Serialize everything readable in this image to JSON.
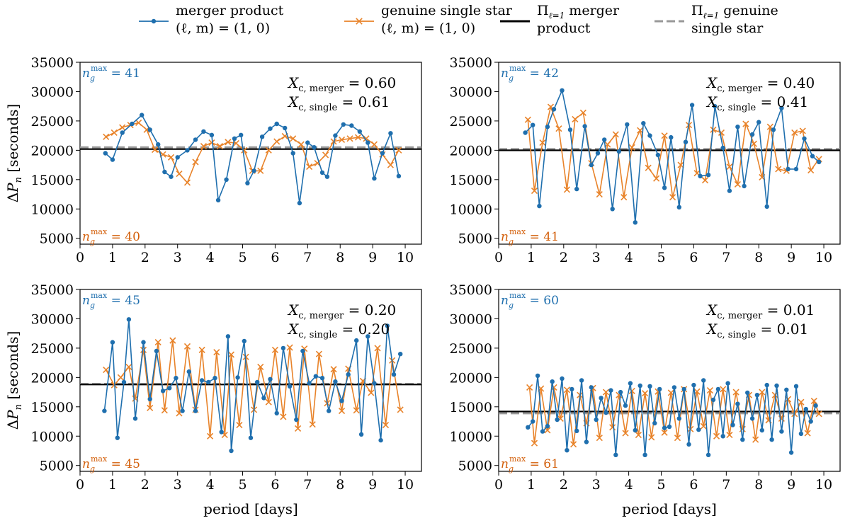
{
  "legend": {
    "entries": [
      {
        "line1": "merger product",
        "line2": "(ℓ, m) = (1, 0)",
        "color": "#1f6fae",
        "marker": "circle"
      },
      {
        "line1": "genuine single star",
        "line2": "(ℓ, m) = (1, 0)",
        "color": "#e8832a",
        "marker": "x"
      },
      {
        "line1_symbol": "Π",
        "line1_sub": "ℓ=1",
        "line1_rest": " merger",
        "line2": "product",
        "color": "#000000",
        "marker": "solid-line"
      },
      {
        "line1_symbol": "Π",
        "line1_sub": "ℓ=1",
        "line1_rest": " genuine",
        "line2": "single star",
        "color": "#999999",
        "marker": "dashed-line"
      }
    ]
  },
  "colors": {
    "merger": "#1f6fae",
    "single": "#e8832a",
    "merger_text": "#1f6fae",
    "single_text": "#d35f0a",
    "pi_merger": "#000000",
    "pi_single": "#999999"
  },
  "chart_data": [
    {
      "type": "line",
      "panel": "top-left",
      "xlabel": "",
      "ylabel": "ΔP_n [seconds]",
      "xlim": [
        0,
        10.5
      ],
      "ylim": [
        4000,
        35000
      ],
      "xticks": [
        0,
        1,
        2,
        3,
        4,
        5,
        6,
        7,
        8,
        9,
        10
      ],
      "yticks": [
        5000,
        10000,
        15000,
        20000,
        25000,
        30000,
        35000
      ],
      "annot_merger": {
        "label": "X",
        "sub": "c, merger",
        "value": "= 0.60"
      },
      "annot_single": {
        "label": "X",
        "sub": "c, single",
        "value": "= 0.61"
      },
      "ng_merger": {
        "label": "n",
        "sub": "g",
        "sup": "max",
        "value": "= 41"
      },
      "ng_single": {
        "label": "n",
        "sub": "g",
        "sup": "max",
        "value": "= 40"
      },
      "pi_merger": 20200,
      "pi_single": 20500,
      "series": [
        {
          "name": "merger product",
          "x": [
            0.78,
            1.0,
            1.3,
            1.6,
            1.9,
            2.15,
            2.4,
            2.6,
            2.8,
            3.0,
            3.3,
            3.55,
            3.8,
            4.05,
            4.25,
            4.5,
            4.75,
            4.95,
            5.15,
            5.35,
            5.6,
            5.85,
            6.05,
            6.3,
            6.55,
            6.75,
            7.0,
            7.2,
            7.45,
            7.6,
            7.85,
            8.1,
            8.35,
            8.6,
            8.85,
            9.05,
            9.3,
            9.55,
            9.8
          ],
          "y": [
            19500,
            18400,
            23000,
            24500,
            26000,
            23500,
            21000,
            16300,
            15500,
            18800,
            20000,
            21800,
            23200,
            22600,
            11500,
            15000,
            22000,
            22600,
            14400,
            16500,
            22300,
            23700,
            24500,
            23800,
            19500,
            11000,
            21300,
            20500,
            16200,
            15500,
            22500,
            24400,
            24200,
            23200,
            21300,
            15200,
            19500,
            22900,
            15600
          ]
        },
        {
          "name": "genuine single star",
          "x": [
            0.8,
            1.05,
            1.3,
            1.55,
            1.8,
            2.05,
            2.3,
            2.55,
            2.8,
            3.05,
            3.3,
            3.55,
            3.8,
            4.05,
            4.3,
            4.55,
            4.8,
            5.05,
            5.3,
            5.55,
            5.8,
            6.05,
            6.3,
            6.55,
            6.8,
            7.05,
            7.3,
            7.55,
            7.8,
            8.05,
            8.3,
            8.55,
            8.8,
            9.05,
            9.3,
            9.55,
            9.8
          ],
          "y": [
            22300,
            23000,
            23900,
            24300,
            24700,
            23500,
            20100,
            19300,
            18800,
            16000,
            14500,
            18000,
            20700,
            21300,
            20700,
            21400,
            21200,
            20000,
            16500,
            16500,
            20000,
            21500,
            22400,
            22000,
            21000,
            17200,
            17800,
            19200,
            21500,
            21800,
            22000,
            22200,
            22000,
            21000,
            19300,
            17500,
            20000
          ]
        }
      ]
    },
    {
      "type": "line",
      "panel": "top-right",
      "xlabel": "",
      "ylabel": "",
      "xlim": [
        0,
        10.5
      ],
      "ylim": [
        4000,
        35000
      ],
      "xticks": [
        0,
        1,
        2,
        3,
        4,
        5,
        6,
        7,
        8,
        9,
        10
      ],
      "yticks": [
        5000,
        10000,
        15000,
        20000,
        25000,
        30000,
        35000
      ],
      "annot_merger": {
        "label": "X",
        "sub": "c, merger",
        "value": "= 0.40"
      },
      "annot_single": {
        "label": "X",
        "sub": "c, single",
        "value": "= 0.41"
      },
      "ng_merger": {
        "label": "n",
        "sub": "g",
        "sup": "max",
        "value": "= 42"
      },
      "ng_single": {
        "label": "n",
        "sub": "g",
        "sup": "max",
        "value": "= 41"
      },
      "pi_merger": 20000,
      "pi_single": 20200,
      "series": [
        {
          "name": "merger product",
          "x": [
            0.82,
            1.05,
            1.25,
            1.5,
            1.7,
            1.95,
            2.2,
            2.4,
            2.65,
            2.85,
            3.05,
            3.25,
            3.5,
            3.7,
            3.95,
            4.2,
            4.45,
            4.65,
            4.9,
            5.1,
            5.3,
            5.55,
            5.75,
            5.95,
            6.2,
            6.45,
            6.65,
            6.9,
            7.1,
            7.35,
            7.55,
            7.8,
            8.0,
            8.25,
            8.45,
            8.7,
            8.9,
            9.15,
            9.4,
            9.65,
            9.85
          ],
          "y": [
            23000,
            24300,
            10500,
            24000,
            27000,
            30200,
            23500,
            13400,
            24100,
            17500,
            19500,
            21800,
            10000,
            19800,
            24400,
            7700,
            24600,
            22500,
            19200,
            13600,
            22200,
            10300,
            21400,
            27700,
            15600,
            15800,
            27500,
            20400,
            13100,
            24000,
            13900,
            22700,
            24800,
            10400,
            23500,
            27200,
            16800,
            16800,
            22000,
            19000,
            18000
          ]
        },
        {
          "name": "genuine single star",
          "x": [
            0.9,
            1.1,
            1.35,
            1.6,
            1.85,
            2.1,
            2.35,
            2.6,
            2.85,
            3.1,
            3.35,
            3.6,
            3.85,
            4.1,
            4.35,
            4.6,
            4.85,
            5.1,
            5.35,
            5.6,
            5.85,
            6.1,
            6.35,
            6.6,
            6.85,
            7.1,
            7.35,
            7.6,
            7.85,
            8.1,
            8.35,
            8.6,
            8.85,
            9.1,
            9.35,
            9.6,
            9.85
          ],
          "y": [
            25200,
            13100,
            21300,
            27400,
            23700,
            13300,
            25300,
            26400,
            17800,
            12500,
            21000,
            22700,
            12000,
            20500,
            23400,
            17000,
            15200,
            22500,
            12000,
            17500,
            24300,
            16100,
            14900,
            23500,
            23000,
            17200,
            14200,
            24500,
            21100,
            15400,
            24000,
            16800,
            16500,
            23000,
            23300,
            16600,
            18500
          ]
        }
      ]
    },
    {
      "type": "line",
      "panel": "bottom-left",
      "xlabel": "period [days]",
      "ylabel": "ΔP_n [seconds]",
      "xlim": [
        0,
        10.5
      ],
      "ylim": [
        4000,
        35000
      ],
      "xticks": [
        0,
        1,
        2,
        3,
        4,
        5,
        6,
        7,
        8,
        9,
        10
      ],
      "yticks": [
        5000,
        10000,
        15000,
        20000,
        25000,
        30000,
        35000
      ],
      "annot_merger": {
        "label": "X",
        "sub": "c, merger",
        "value": "= 0.20"
      },
      "annot_single": {
        "label": "X",
        "sub": "c, single",
        "value": "= 0.20"
      },
      "ng_merger": {
        "label": "n",
        "sub": "g",
        "sup": "max",
        "value": "= 45"
      },
      "ng_single": {
        "label": "n",
        "sub": "g",
        "sup": "max",
        "value": "= 45"
      },
      "pi_merger": 18800,
      "pi_single": 18900,
      "series": [
        {
          "name": "merger product",
          "x": [
            0.75,
            1.0,
            1.15,
            1.35,
            1.5,
            1.7,
            1.95,
            2.15,
            2.35,
            2.55,
            2.75,
            2.95,
            3.15,
            3.35,
            3.55,
            3.75,
            3.95,
            4.15,
            4.35,
            4.55,
            4.65,
            4.85,
            5.05,
            5.25,
            5.45,
            5.65,
            5.85,
            6.05,
            6.25,
            6.45,
            6.65,
            6.85,
            7.05,
            7.25,
            7.45,
            7.65,
            7.85,
            8.05,
            8.25,
            8.5,
            8.65,
            8.85,
            9.05,
            9.25,
            9.45,
            9.65,
            9.85
          ],
          "y": [
            14300,
            26000,
            9700,
            19200,
            29900,
            13000,
            26000,
            16300,
            24500,
            17700,
            18200,
            19900,
            14300,
            21000,
            14300,
            19500,
            19200,
            19900,
            10700,
            27000,
            7500,
            20000,
            26200,
            9700,
            19200,
            16500,
            19700,
            13900,
            25000,
            18500,
            12800,
            24500,
            19000,
            20200,
            19900,
            14300,
            19300,
            16000,
            20500,
            26300,
            10300,
            27000,
            19000,
            9300,
            28800,
            20500,
            24000
          ]
        },
        {
          "name": "genuine single star",
          "x": [
            0.8,
            1.05,
            1.25,
            1.5,
            1.7,
            1.95,
            2.15,
            2.4,
            2.6,
            2.85,
            3.05,
            3.3,
            3.55,
            3.75,
            4.0,
            4.2,
            4.45,
            4.65,
            4.9,
            5.1,
            5.35,
            5.55,
            5.8,
            6.0,
            6.25,
            6.45,
            6.7,
            6.9,
            7.15,
            7.35,
            7.6,
            7.8,
            8.05,
            8.25,
            8.5,
            8.7,
            8.95,
            9.15,
            9.4,
            9.6,
            9.85
          ],
          "y": [
            21300,
            18700,
            20000,
            21800,
            16400,
            24700,
            14800,
            26000,
            14400,
            26300,
            13900,
            25300,
            14500,
            24700,
            10000,
            24300,
            10200,
            23900,
            11900,
            23500,
            14500,
            21800,
            15800,
            24700,
            13300,
            25100,
            11300,
            24900,
            12000,
            24000,
            15600,
            21400,
            14300,
            21500,
            14400,
            19400,
            17400,
            25000,
            11900,
            22900,
            14500
          ]
        }
      ]
    },
    {
      "type": "line",
      "panel": "bottom-right",
      "xlabel": "period [days]",
      "ylabel": "",
      "xlim": [
        0,
        10.5
      ],
      "ylim": [
        4000,
        35000
      ],
      "xticks": [
        0,
        1,
        2,
        3,
        4,
        5,
        6,
        7,
        8,
        9,
        10
      ],
      "yticks": [
        5000,
        10000,
        15000,
        20000,
        25000,
        30000,
        35000
      ],
      "annot_merger": {
        "label": "X",
        "sub": "c, merger",
        "value": "= 0.01"
      },
      "annot_single": {
        "label": "X",
        "sub": "c, single",
        "value": "= 0.01"
      },
      "ng_merger": {
        "label": "n",
        "sub": "g",
        "sup": "max",
        "value": "= 60"
      },
      "ng_single": {
        "label": "n",
        "sub": "g",
        "sup": "max",
        "value": "= 61"
      },
      "pi_merger": 14200,
      "pi_single": 13900,
      "series": [
        {
          "name": "merger product",
          "x": [
            0.9,
            1.05,
            1.2,
            1.35,
            1.5,
            1.65,
            1.8,
            1.95,
            2.1,
            2.25,
            2.4,
            2.55,
            2.7,
            2.85,
            3.0,
            3.15,
            3.3,
            3.45,
            3.6,
            3.75,
            3.9,
            4.05,
            4.2,
            4.35,
            4.5,
            4.65,
            4.8,
            4.95,
            5.1,
            5.25,
            5.4,
            5.55,
            5.7,
            5.85,
            6.0,
            6.15,
            6.3,
            6.45,
            6.6,
            6.75,
            6.9,
            7.05,
            7.2,
            7.35,
            7.5,
            7.65,
            7.8,
            7.95,
            8.1,
            8.25,
            8.4,
            8.55,
            8.7,
            8.85,
            9.0,
            9.15,
            9.3,
            9.45,
            9.6,
            9.75
          ],
          "y": [
            11500,
            12500,
            20300,
            10800,
            11700,
            19300,
            12800,
            19800,
            7600,
            18000,
            10900,
            19500,
            9000,
            18300,
            12800,
            16500,
            14000,
            17800,
            6800,
            17500,
            15200,
            19000,
            11000,
            18600,
            6800,
            18500,
            12200,
            18000,
            11400,
            11600,
            18300,
            13000,
            18000,
            8600,
            18700,
            11100,
            19500,
            6800,
            16200,
            18000,
            10000,
            19000,
            11900,
            15500,
            9400,
            17400,
            13000,
            17000,
            11000,
            18700,
            9400,
            18600,
            10800,
            17900,
            7200,
            18500,
            10400,
            14600,
            12500,
            15200
          ]
        },
        {
          "name": "genuine single star",
          "x": [
            0.95,
            1.1,
            1.3,
            1.5,
            1.7,
            1.9,
            2.1,
            2.3,
            2.5,
            2.7,
            2.9,
            3.1,
            3.3,
            3.5,
            3.7,
            3.9,
            4.1,
            4.3,
            4.5,
            4.7,
            4.9,
            5.1,
            5.3,
            5.5,
            5.7,
            5.9,
            6.1,
            6.3,
            6.5,
            6.7,
            6.9,
            7.1,
            7.3,
            7.5,
            7.7,
            7.9,
            8.1,
            8.3,
            8.5,
            8.7,
            8.9,
            9.1,
            9.3,
            9.5,
            9.7,
            9.85
          ],
          "y": [
            18300,
            8800,
            18100,
            11000,
            18300,
            13000,
            17900,
            8600,
            17000,
            12200,
            18200,
            9700,
            17500,
            11500,
            17000,
            10500,
            17700,
            10200,
            17300,
            9800,
            17600,
            10600,
            17400,
            9700,
            18000,
            11200,
            17600,
            11700,
            17800,
            10000,
            18000,
            10200,
            17500,
            11200,
            17000,
            9400,
            17500,
            12700,
            17000,
            13000,
            16300,
            13800,
            15800,
            10500,
            16000,
            13800
          ]
        }
      ]
    }
  ]
}
